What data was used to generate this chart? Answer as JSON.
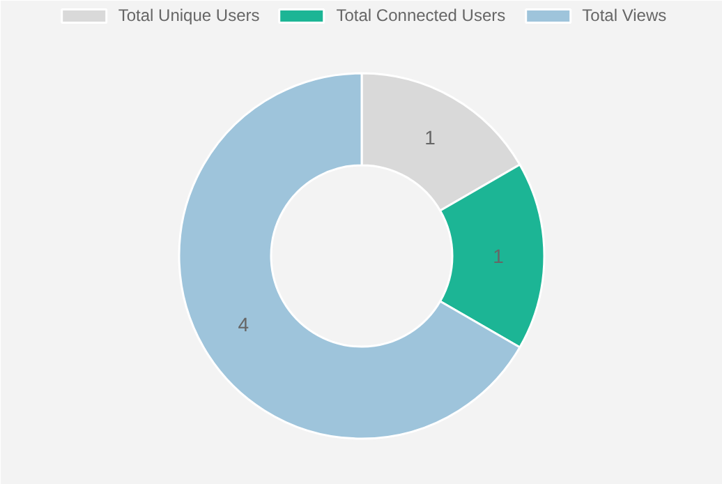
{
  "chart_data": {
    "type": "donut",
    "categories": [
      "Total Unique Users",
      "Total Connected Users",
      "Total Views"
    ],
    "values": [
      1,
      1,
      4
    ],
    "colors": [
      "#d9d9d9",
      "#1cb595",
      "#9ec4db"
    ],
    "data_labels": true,
    "legend": "top"
  }
}
